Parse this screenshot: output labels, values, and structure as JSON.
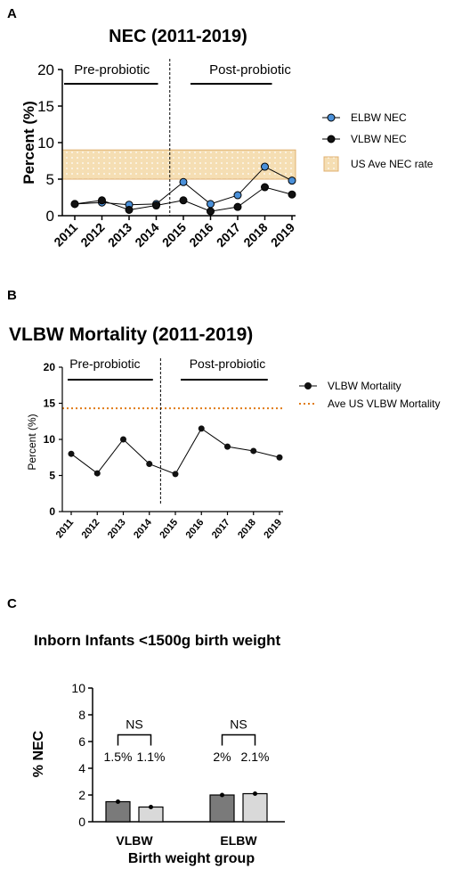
{
  "colors": {
    "elbw": "#4a90d9",
    "vlbw": "#111111",
    "band_fill": "#f5deb3",
    "band_stroke": "#e0b070",
    "mortality_line": "#e07b16",
    "bar_dark": "#7a7a7a",
    "bar_light": "#d9d9d9"
  },
  "chart_data": [
    {
      "panel": "A",
      "type": "line",
      "title": "NEC (2011-2019)",
      "ylabel": "Percent (%)",
      "xlabel": "",
      "x": [
        "2011",
        "2012",
        "2013",
        "2014",
        "2015",
        "2016",
        "2017",
        "2018",
        "2019"
      ],
      "ylim": [
        0,
        20
      ],
      "yticks": [
        "0",
        "5",
        "10",
        "15",
        "20"
      ],
      "periods": [
        "Pre-probiotic",
        "Post-probiotic"
      ],
      "series": [
        {
          "name": "ELBW NEC",
          "values": [
            1.6,
            1.8,
            1.5,
            1.6,
            4.6,
            1.6,
            2.8,
            6.7,
            4.8
          ]
        },
        {
          "name": "VLBW NEC",
          "values": [
            1.6,
            2.1,
            0.8,
            1.4,
            2.1,
            0.6,
            1.2,
            3.9,
            2.9
          ]
        }
      ],
      "band": {
        "name": "US Ave NEC rate",
        "range": [
          5,
          9
        ]
      },
      "legend_position": "right"
    },
    {
      "panel": "B",
      "type": "line",
      "title": "VLBW Mortality (2011-2019)",
      "ylabel": "Percent (%)",
      "xlabel": "",
      "x": [
        "2011",
        "2012",
        "2013",
        "2014",
        "2015",
        "2016",
        "2017",
        "2018",
        "2019"
      ],
      "ylim": [
        0,
        20
      ],
      "yticks": [
        "0",
        "5",
        "10",
        "15",
        "20"
      ],
      "periods": [
        "Pre-probiotic",
        "Post-probiotic"
      ],
      "series": [
        {
          "name": "VLBW Mortality",
          "values": [
            8.0,
            5.3,
            10.0,
            6.6,
            5.2,
            11.5,
            9.0,
            8.4,
            7.5
          ]
        }
      ],
      "reference_line": {
        "name": "Ave US VLBW Mortality",
        "value": 14.3
      },
      "legend_position": "right"
    },
    {
      "panel": "C",
      "type": "bar",
      "title": "Inborn Infants <1500g birth weight",
      "ylabel": "% NEC",
      "xlabel": "Birth weight group",
      "categories": [
        "VLBW",
        "ELBW"
      ],
      "ylim": [
        0,
        10
      ],
      "yticks": [
        "0",
        "2",
        "4",
        "6",
        "8",
        "10"
      ],
      "series": [
        {
          "values": [
            1.5,
            2.0
          ],
          "labels": [
            "1.5%",
            "2%"
          ]
        },
        {
          "values": [
            1.1,
            2.1
          ],
          "labels": [
            "1.1%",
            "2.1%"
          ]
        }
      ],
      "significance": [
        "NS",
        "NS"
      ]
    }
  ]
}
